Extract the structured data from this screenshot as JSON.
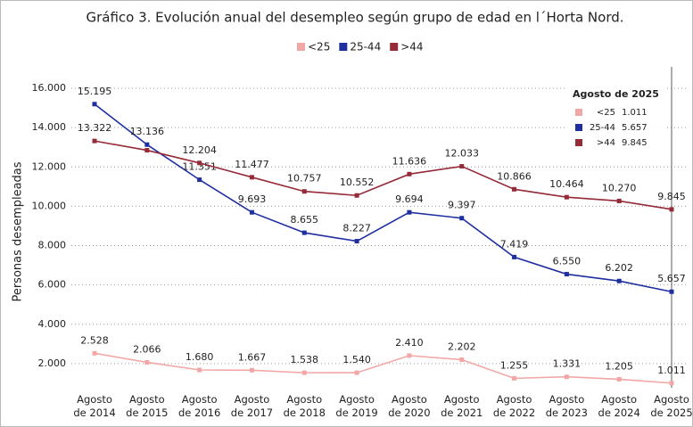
{
  "chart_data": {
    "type": "line",
    "title": "Gráfico 3. Evolución anual del desempleo según grupo de edad en l´Horta Nord.",
    "y_label": "Personas desempleadas",
    "categories": [
      "Agosto de 2014",
      "Agosto de 2015",
      "Agosto de 2016",
      "Agosto de 2017",
      "Agosto de 2018",
      "Agosto de 2019",
      "Agosto de 2020",
      "Agosto de 2021",
      "Agosto de 2022",
      "Agosto de 2023",
      "Agosto de 2024",
      "Agosto de 2025"
    ],
    "series": [
      {
        "name": "<25",
        "color": "#f2a7a6",
        "values": [
          2528,
          2066,
          1680,
          1667,
          1538,
          1540,
          2410,
          2202,
          1255,
          1331,
          1205,
          1011
        ],
        "value_labels": [
          "2.528",
          "2.066",
          "1.680",
          "1.667",
          "1.538",
          "1.540",
          "2.410",
          "2.202",
          "1.255",
          "1.331",
          "1.205",
          "1.011"
        ]
      },
      {
        "name": "25-44",
        "color": "#1f2f9f",
        "values": [
          15195,
          13136,
          11351,
          9693,
          8655,
          8227,
          9694,
          9397,
          7419,
          6550,
          6202,
          5657
        ],
        "value_labels": [
          "15.195",
          "13.136",
          "11.351",
          "9.693",
          "8.655",
          "8.227",
          "9.694",
          "9.397",
          "7.419",
          "6.550",
          "6.202",
          "5.657"
        ]
      },
      {
        "name": ">44",
        "color": "#952a38",
        "values": [
          13322,
          12850,
          12204,
          11477,
          10757,
          10552,
          11636,
          12033,
          10866,
          10464,
          10270,
          9845
        ],
        "value_labels": [
          "13.322",
          null,
          "12.204",
          "11.477",
          "10.757",
          "10.552",
          "11.636",
          "12.033",
          "10.866",
          "10.464",
          "10.270",
          "9.845"
        ]
      }
    ],
    "ylim": [
      1000,
      16500
    ],
    "yticks": [
      {
        "value": 2000,
        "label": "2.000"
      },
      {
        "value": 4000,
        "label": "4.000"
      },
      {
        "value": 6000,
        "label": "6.000"
      },
      {
        "value": 8000,
        "label": "8.000"
      },
      {
        "value": 10000,
        "label": "10.000"
      },
      {
        "value": 12000,
        "label": "12.000"
      },
      {
        "value": 14000,
        "label": "14.000"
      },
      {
        "value": 16000,
        "label": "16.000"
      }
    ],
    "grid": true,
    "highlight_title": "Agosto de 2025"
  }
}
